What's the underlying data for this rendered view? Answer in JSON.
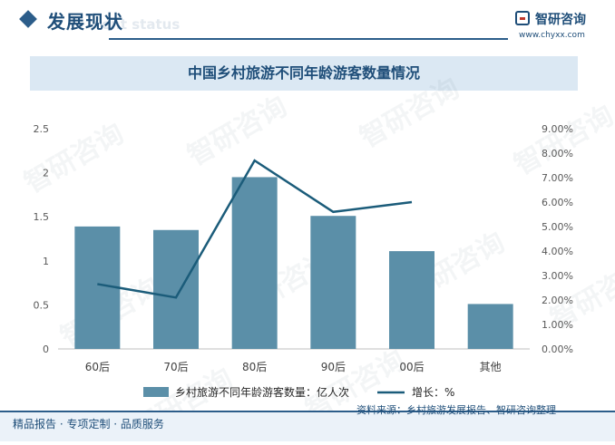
{
  "header": {
    "section_title": "发展现状",
    "section_subtitle": "ent status",
    "logo_name": "智研咨询",
    "logo_url": "www.chyxx.com"
  },
  "footer": {
    "left_text": "精品报告 · 专项定制 · 品质服务",
    "source": "资料来源：乡村旅游发展报告、智研咨询整理"
  },
  "watermark": "智研咨询",
  "colors": {
    "bar": "#5b8fa8",
    "line": "#1b5c7a",
    "title_band": "#dbe8f3",
    "brand": "#1f4e79"
  },
  "chart_data": {
    "type": "bar",
    "title": "中国乡村旅游不同年龄游客数量情况",
    "categories": [
      "60后",
      "70后",
      "80后",
      "90后",
      "00后",
      "其他"
    ],
    "series": [
      {
        "name": "乡村旅游不同年龄游客数量：亿人次",
        "type": "bar",
        "axis": "left",
        "values": [
          1.39,
          1.35,
          1.95,
          1.51,
          1.11,
          0.51
        ]
      },
      {
        "name": "增长：%",
        "type": "line",
        "axis": "right",
        "values": [
          2.65,
          2.1,
          7.7,
          5.6,
          6.0,
          null
        ]
      }
    ],
    "y_left": {
      "min": 0,
      "max": 2.5,
      "ticks": [
        "0",
        "0.5",
        "1",
        "1.5",
        "2",
        "2.5"
      ]
    },
    "y_right": {
      "min": 0,
      "max": 9,
      "ticks": [
        "0.00%",
        "1.00%",
        "2.00%",
        "3.00%",
        "4.00%",
        "5.00%",
        "6.00%",
        "7.00%",
        "8.00%",
        "9.00%"
      ]
    },
    "grid": false,
    "legend": "bottom"
  }
}
